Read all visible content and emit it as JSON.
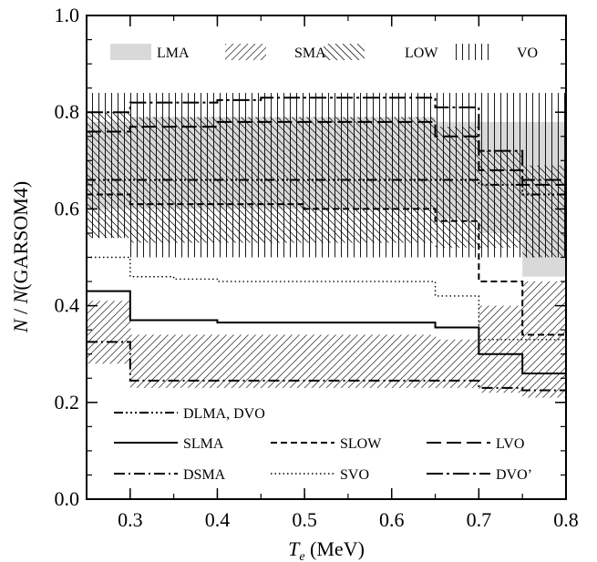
{
  "chart_data": {
    "type": "line",
    "title": "",
    "xlabel": "T_e (MeV)",
    "ylabel": "N / N(GARSOM4)",
    "xlim": [
      0.25,
      0.8
    ],
    "ylim": [
      0.0,
      1.0
    ],
    "x_ticks": [
      "0.3",
      "0.4",
      "0.5",
      "0.6",
      "0.7",
      "0.8"
    ],
    "y_ticks": [
      "0.0",
      "0.2",
      "0.4",
      "0.6",
      "0.8",
      "1.0"
    ],
    "x_edges": [
      0.25,
      0.3,
      0.35,
      0.4,
      0.45,
      0.5,
      0.55,
      0.6,
      0.65,
      0.7,
      0.75,
      0.8
    ],
    "bands": [
      {
        "name": "LMA",
        "style": "gray-fill",
        "upper": [
          0.78,
          0.79,
          0.79,
          0.79,
          0.79,
          0.79,
          0.79,
          0.79,
          0.78,
          0.78,
          0.78
        ],
        "lower": [
          0.6,
          0.6,
          0.6,
          0.6,
          0.6,
          0.6,
          0.6,
          0.6,
          0.58,
          0.55,
          0.46
        ]
      },
      {
        "name": "SMA",
        "style": "hatch-diagonal",
        "upper": [
          0.41,
          0.34,
          0.34,
          0.34,
          0.34,
          0.34,
          0.34,
          0.34,
          0.33,
          0.4,
          0.45
        ],
        "lower": [
          0.28,
          0.23,
          0.23,
          0.23,
          0.23,
          0.23,
          0.23,
          0.23,
          0.23,
          0.22,
          0.21
        ]
      },
      {
        "name": "LOW",
        "style": "hatch-antidiagonal",
        "upper": [
          0.8,
          0.79,
          0.79,
          0.79,
          0.79,
          0.79,
          0.79,
          0.79,
          0.77,
          0.72,
          0.69
        ],
        "lower": [
          0.54,
          0.53,
          0.53,
          0.53,
          0.53,
          0.53,
          0.53,
          0.53,
          0.52,
          0.52,
          0.5
        ]
      },
      {
        "name": "VO",
        "style": "hatch-vertical",
        "upper": [
          0.84,
          0.84,
          0.84,
          0.84,
          0.84,
          0.84,
          0.84,
          0.84,
          0.84,
          0.84,
          0.84
        ],
        "lower": [
          0.54,
          0.5,
          0.5,
          0.5,
          0.5,
          0.5,
          0.5,
          0.5,
          0.5,
          0.5,
          0.5
        ]
      }
    ],
    "series": [
      {
        "name": "DLMA, DVO",
        "style": "dash-dot-dot-dot",
        "values": [
          0.66,
          0.66,
          0.66,
          0.66,
          0.66,
          0.66,
          0.66,
          0.66,
          0.66,
          0.65,
          0.63
        ]
      },
      {
        "name": "SLMA",
        "style": "solid",
        "values": [
          0.43,
          0.37,
          0.37,
          0.365,
          0.365,
          0.365,
          0.365,
          0.365,
          0.355,
          0.3,
          0.26
        ]
      },
      {
        "name": "SLOW",
        "style": "short-dash",
        "values": [
          0.63,
          0.61,
          0.61,
          0.61,
          0.61,
          0.6,
          0.6,
          0.6,
          0.575,
          0.45,
          0.34
        ]
      },
      {
        "name": "LVO",
        "style": "long-dash",
        "values": [
          0.76,
          0.77,
          0.77,
          0.78,
          0.78,
          0.78,
          0.78,
          0.78,
          0.75,
          0.68,
          0.65
        ]
      },
      {
        "name": "DSMA",
        "style": "dash-dot",
        "values": [
          0.325,
          0.245,
          0.245,
          0.245,
          0.245,
          0.245,
          0.245,
          0.245,
          0.245,
          0.23,
          0.225
        ]
      },
      {
        "name": "SVO",
        "style": "dotted",
        "values": [
          0.5,
          0.46,
          0.455,
          0.45,
          0.45,
          0.45,
          0.45,
          0.45,
          0.42,
          0.33,
          0.33
        ]
      },
      {
        "name": "DVO’",
        "style": "long-dash-dot",
        "values": [
          0.8,
          0.82,
          0.82,
          0.825,
          0.83,
          0.83,
          0.83,
          0.83,
          0.81,
          0.72,
          0.66
        ]
      }
    ],
    "band_legend": [
      "LMA",
      "SMA",
      "LOW",
      "VO"
    ],
    "line_legend_rows": [
      [
        "DLMA, DVO"
      ],
      [
        "SLMA",
        "SLOW",
        "LVO"
      ],
      [
        "DSMA",
        "SVO",
        "DVO’"
      ]
    ],
    "legend_placement": "bands top, lines bottom",
    "grid": false
  }
}
